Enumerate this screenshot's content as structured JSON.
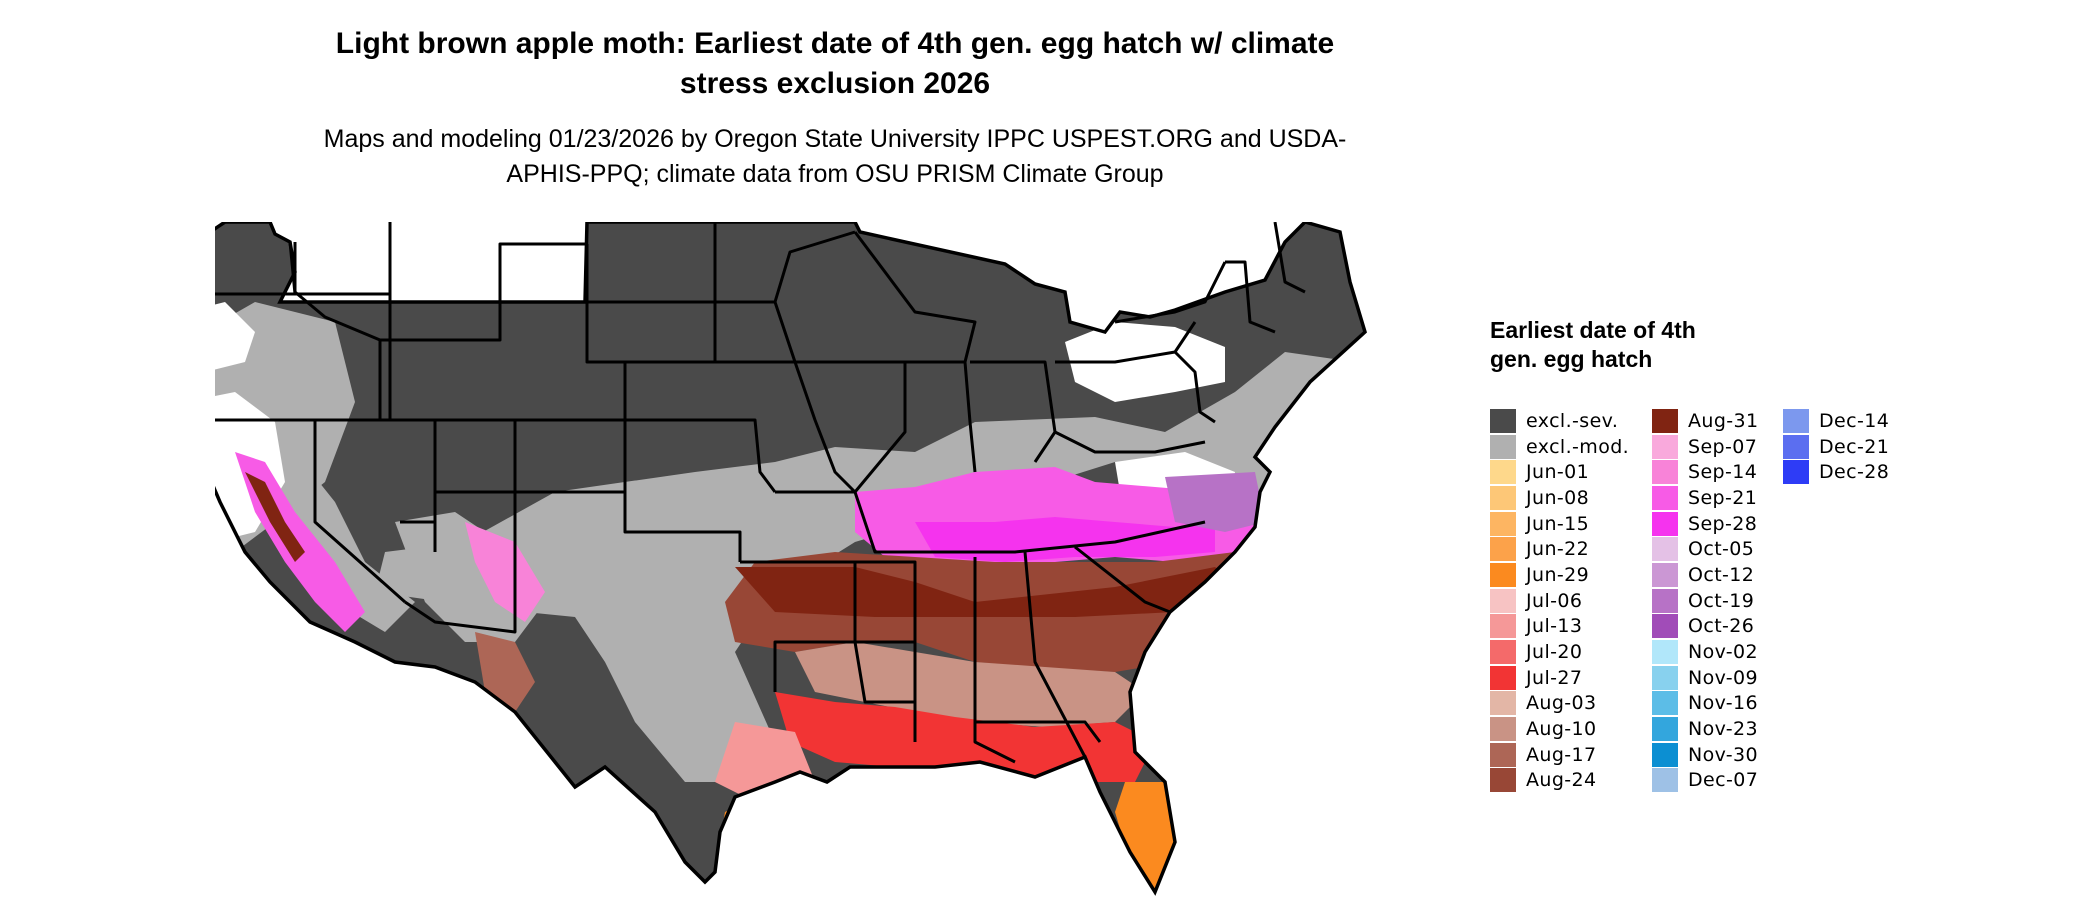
{
  "title": "Light brown apple moth: Earliest date of 4th gen. egg hatch w/ climate stress exclusion 2026",
  "subtitle": "Maps and modeling 01/23/2026 by Oregon State University IPPC USPEST.ORG and USDA-APHIS-PPQ; climate data from OSU PRISM Climate Group",
  "legend": {
    "title": "Earliest date of 4th gen. egg hatch",
    "items": [
      {
        "label": "excl.-sev.",
        "color": "#4a4a4a"
      },
      {
        "label": "excl.-mod.",
        "color": "#b0b0b0"
      },
      {
        "label": "Jun-01",
        "color": "#fed88b"
      },
      {
        "label": "Jun-08",
        "color": "#fdc777"
      },
      {
        "label": "Jun-15",
        "color": "#fdb562"
      },
      {
        "label": "Jun-22",
        "color": "#fca24a"
      },
      {
        "label": "Jun-29",
        "color": "#fb8a1f"
      },
      {
        "label": "Jul-06",
        "color": "#f7c3c3"
      },
      {
        "label": "Jul-13",
        "color": "#f59898"
      },
      {
        "label": "Jul-20",
        "color": "#f46a6a"
      },
      {
        "label": "Jul-27",
        "color": "#f23434"
      },
      {
        "label": "Aug-03",
        "color": "#e3b6a6"
      },
      {
        "label": "Aug-10",
        "color": "#c99385"
      },
      {
        "label": "Aug-17",
        "color": "#ad6656"
      },
      {
        "label": "Aug-24",
        "color": "#984736"
      },
      {
        "label": "Aug-31",
        "color": "#802412"
      },
      {
        "label": "Sep-07",
        "color": "#f9a9dc"
      },
      {
        "label": "Sep-14",
        "color": "#f883d8"
      },
      {
        "label": "Sep-21",
        "color": "#f75be6"
      },
      {
        "label": "Sep-28",
        "color": "#f533ee"
      },
      {
        "label": "Oct-05",
        "color": "#e4c1e6"
      },
      {
        "label": "Oct-12",
        "color": "#cb97d4"
      },
      {
        "label": "Oct-19",
        "color": "#b772c6"
      },
      {
        "label": "Oct-26",
        "color": "#a14cb8"
      },
      {
        "label": "Nov-02",
        "color": "#b1e7fa"
      },
      {
        "label": "Nov-09",
        "color": "#88d1ee"
      },
      {
        "label": "Nov-16",
        "color": "#5cbde7"
      },
      {
        "label": "Nov-23",
        "color": "#33a6dd"
      },
      {
        "label": "Nov-30",
        "color": "#0c8fd2"
      },
      {
        "label": "Dec-07",
        "color": "#9ec1e6"
      },
      {
        "label": "Dec-14",
        "color": "#7c98ee"
      },
      {
        "label": "Dec-21",
        "color": "#5b6ef0"
      },
      {
        "label": "Dec-28",
        "color": "#2e3cf6"
      }
    ]
  }
}
